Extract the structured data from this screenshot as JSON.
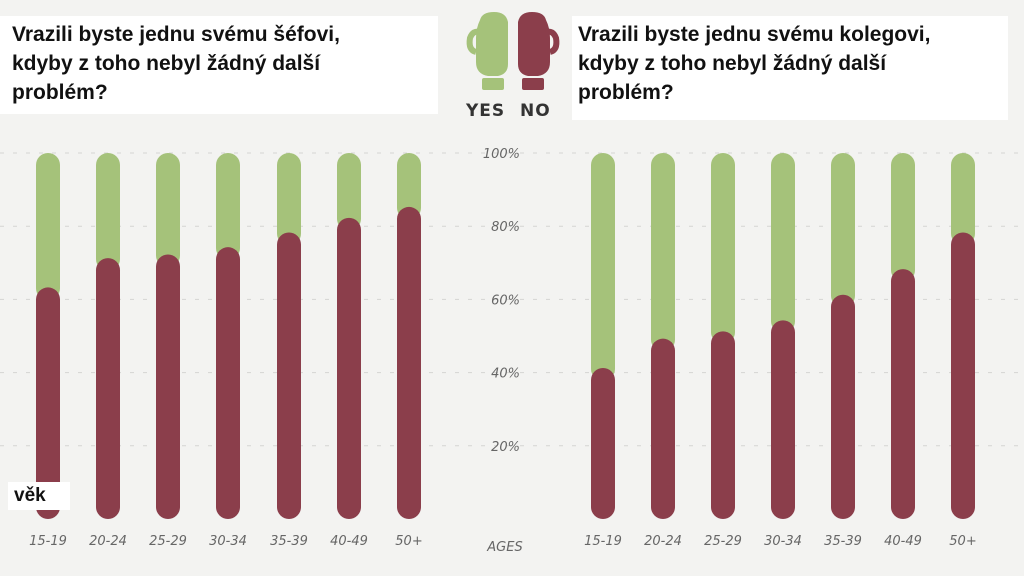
{
  "colors": {
    "yes": "#a5c27a",
    "no": "#8b3e4b",
    "grid": "#d5d5d2",
    "tick": "#666666"
  },
  "legend": {
    "yes_label": "YES",
    "no_label": "NO",
    "icon": "boxing-gloves-icon"
  },
  "chart_data": [
    {
      "type": "bar",
      "stacked": true,
      "title_lines": [
        "Vrazili byste jednu svému šéfovi,",
        "kdyby z toho nebyl žádný další",
        "problém?"
      ],
      "xlabel": "věk",
      "categories": [
        "15-19",
        "20-24",
        "25-29",
        "30-34",
        "35-39",
        "40-49",
        "50+"
      ],
      "series": [
        {
          "name": "NO",
          "values": [
            63,
            71,
            72,
            74,
            78,
            82,
            85
          ]
        },
        {
          "name": "YES",
          "values": [
            37,
            29,
            28,
            26,
            22,
            18,
            15
          ]
        }
      ],
      "ylim": [
        0,
        100
      ],
      "yticks": [
        "20%",
        "40%",
        "60%",
        "80%",
        "100%"
      ],
      "grid": true
    },
    {
      "type": "bar",
      "stacked": true,
      "title_lines": [
        "Vrazili byste jednu svému kolegovi,",
        "kdyby z toho nebyl žádný další",
        "problém?"
      ],
      "xlabel": "AGES",
      "categories": [
        "15-19",
        "20-24",
        "25-29",
        "30-34",
        "35-39",
        "40-49",
        "50+"
      ],
      "series": [
        {
          "name": "NO",
          "values": [
            41,
            49,
            51,
            54,
            61,
            68,
            78
          ]
        },
        {
          "name": "YES",
          "values": [
            59,
            51,
            49,
            46,
            39,
            32,
            22
          ]
        }
      ],
      "ylim": [
        0,
        100
      ],
      "grid": true
    }
  ]
}
